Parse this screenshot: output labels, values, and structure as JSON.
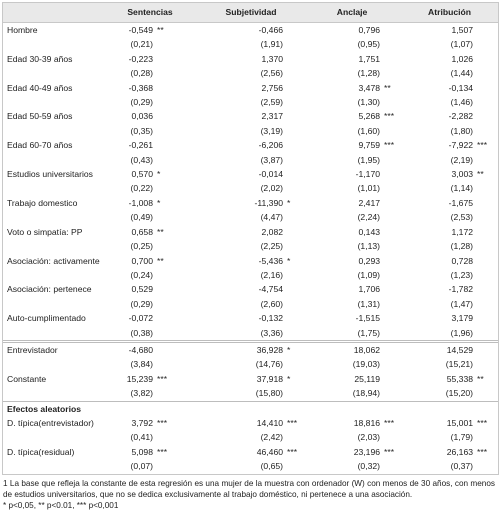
{
  "header": [
    "Sentencias",
    "Subjetividad",
    "Anclaje",
    "Atribución"
  ],
  "sections": [
    {
      "rows": [
        {
          "label": "Hombre",
          "coef": [
            {
              "value": "-0,549",
              "stars": "**"
            },
            {
              "value": "-0,466"
            },
            {
              "value": "0,796"
            },
            {
              "value": "1,507"
            }
          ],
          "se": [
            "(0,21)",
            "(1,91)",
            "(0,95)",
            "(1,07)"
          ]
        },
        {
          "label": "Edad 30-39 años",
          "coef": [
            {
              "value": "-0,223"
            },
            {
              "value": "1,370"
            },
            {
              "value": "1,751"
            },
            {
              "value": "1,026"
            }
          ],
          "se": [
            "(0,28)",
            "(2,56)",
            "(1,28)",
            "(1,44)"
          ]
        },
        {
          "label": "Edad 40-49 años",
          "coef": [
            {
              "value": "-0,368"
            },
            {
              "value": "2,756"
            },
            {
              "value": "3,478",
              "stars": "**"
            },
            {
              "value": "-0,134"
            }
          ],
          "se": [
            "(0,29)",
            "(2,59)",
            "(1,30)",
            "(1,46)"
          ]
        },
        {
          "label": "Edad 50-59 años",
          "coef": [
            {
              "value": "0,036"
            },
            {
              "value": "2,317"
            },
            {
              "value": "5,268",
              "stars": "***"
            },
            {
              "value": "-2,282"
            }
          ],
          "se": [
            "(0,35)",
            "(3,19)",
            "(1,60)",
            "(1,80)"
          ]
        },
        {
          "label": "Edad 60-70 años",
          "coef": [
            {
              "value": "-0,261"
            },
            {
              "value": "-6,206"
            },
            {
              "value": "9,759",
              "stars": "***"
            },
            {
              "value": "-7,922",
              "stars": "***"
            }
          ],
          "se": [
            "(0,43)",
            "(3,87)",
            "(1,95)",
            "(2,19)"
          ]
        },
        {
          "label": "Estudios universitarios",
          "coef": [
            {
              "value": "0,570",
              "stars": "*"
            },
            {
              "value": "-0,014"
            },
            {
              "value": "-1,170"
            },
            {
              "value": "3,003",
              "stars": "**"
            }
          ],
          "se": [
            "(0,22)",
            "(2,02)",
            "(1,01)",
            "(1,14)"
          ]
        },
        {
          "label": "Trabajo domestico",
          "coef": [
            {
              "value": "-1,008",
              "stars": "*"
            },
            {
              "value": "-11,390",
              "stars": "*"
            },
            {
              "value": "2,417"
            },
            {
              "value": "-1,675"
            }
          ],
          "se": [
            "(0,49)",
            "(4,47)",
            "(2,24)",
            "(2,53)"
          ]
        },
        {
          "label": "Voto o simpatía: PP",
          "coef": [
            {
              "value": "0,658",
              "stars": "**"
            },
            {
              "value": "2,082"
            },
            {
              "value": "0,143"
            },
            {
              "value": "1,172"
            }
          ],
          "se": [
            "(0,25)",
            "(2,25)",
            "(1,13)",
            "(1,28)"
          ]
        },
        {
          "label": "Asociación: activamente",
          "coef": [
            {
              "value": "0,700",
              "stars": "**"
            },
            {
              "value": "-5,436",
              "stars": "*"
            },
            {
              "value": "0,293"
            },
            {
              "value": "0,728"
            }
          ],
          "se": [
            "(0,24)",
            "(2,16)",
            "(1,09)",
            "(1,23)"
          ]
        },
        {
          "label": "Asociación: pertenece",
          "coef": [
            {
              "value": "0,529"
            },
            {
              "value": "-4,754"
            },
            {
              "value": "1,706"
            },
            {
              "value": "-1,782"
            }
          ],
          "se": [
            "(0,29)",
            "(2,60)",
            "(1,31)",
            "(1,47)"
          ]
        },
        {
          "label": "Auto-cumplimentado",
          "coef": [
            {
              "value": "-0,072"
            },
            {
              "value": "-0,132"
            },
            {
              "value": "-1,515"
            },
            {
              "value": "3,179"
            }
          ],
          "se": [
            "(0,38)",
            "(3,36)",
            "(1,75)",
            "(1,96)"
          ]
        }
      ]
    },
    {
      "rows": [
        {
          "label": "Entrevistador",
          "coef": [
            {
              "value": "-4,680"
            },
            {
              "value": "36,928",
              "stars": "*"
            },
            {
              "value": "18,062"
            },
            {
              "value": "14,529"
            }
          ],
          "se": [
            "(3,84)",
            "(14,76)",
            "(19,03)",
            "(15,21)"
          ]
        },
        {
          "label": "Constante",
          "coef": [
            {
              "value": "15,239",
              "stars": "***"
            },
            {
              "value": "37,918",
              "stars": "*"
            },
            {
              "value": "25,119"
            },
            {
              "value": "55,338",
              "stars": "**"
            }
          ],
          "se": [
            "(3,82)",
            "(15,80)",
            "(18,94)",
            "(15,20)"
          ]
        }
      ]
    },
    {
      "title": "Efectos aleatorios",
      "rows": [
        {
          "label": "D. típica(entrevistador)",
          "coef": [
            {
              "value": "3,792",
              "stars": "***"
            },
            {
              "value": "14,410",
              "stars": "***"
            },
            {
              "value": "18,816",
              "stars": "***"
            },
            {
              "value": "15,001",
              "stars": "***"
            }
          ],
          "se": [
            "(0,41)",
            "(2,42)",
            "(2,03)",
            "(1,79)"
          ]
        },
        {
          "label": "D. típica(residual)",
          "coef": [
            {
              "value": "5,098",
              "stars": "***"
            },
            {
              "value": "46,460",
              "stars": "***"
            },
            {
              "value": "23,196",
              "stars": "***"
            },
            {
              "value": "26,163",
              "stars": "***"
            }
          ],
          "se": [
            "(0,07)",
            "(0,65)",
            "(0,32)",
            "(0,37)"
          ]
        }
      ]
    }
  ],
  "notes": [
    "1 La base que refleja la constante de esta regresión es una mujer de la muestra con ordenador (W) con menos de 30 años, con menos de estudios universitarios, que no se dedica exclusivamente al trabajo doméstico, ni pertenece a una asociación.",
    "* p<0,05, ** p<0.01, *** p<0,001"
  ]
}
